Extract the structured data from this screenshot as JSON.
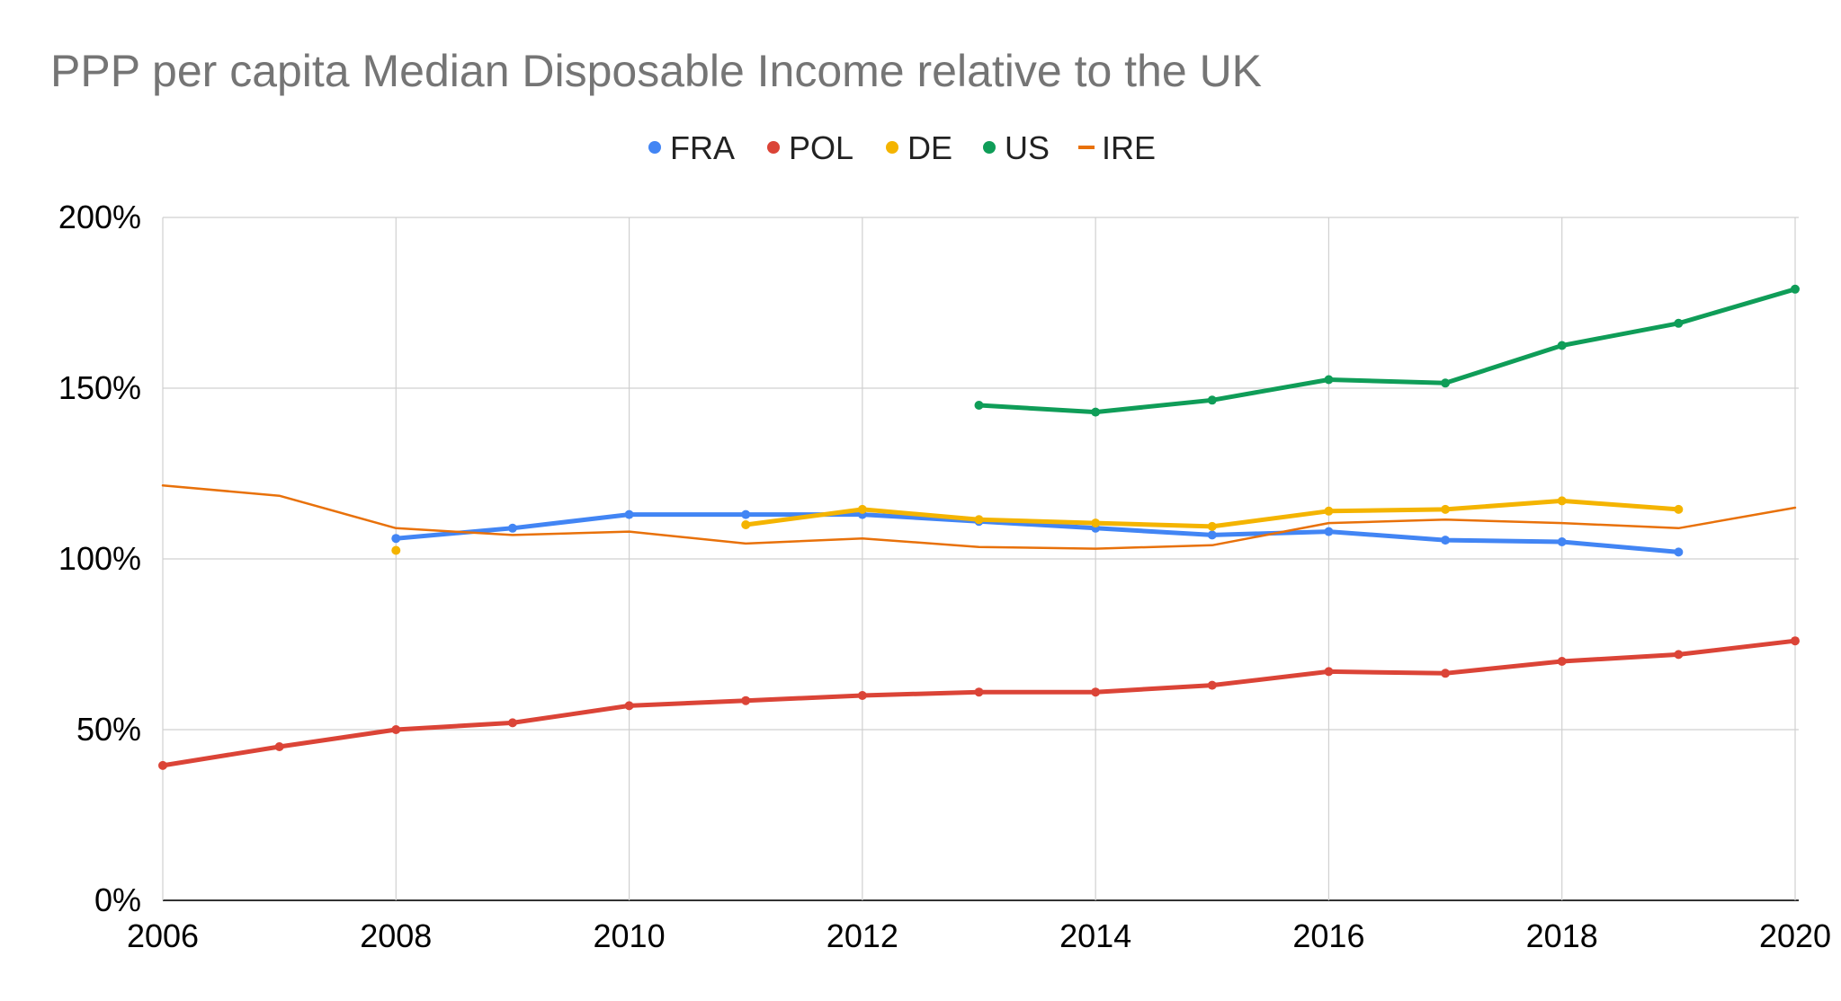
{
  "chart_data": {
    "type": "line",
    "title": "PPP per capita Median Disposable Income relative to the UK",
    "xlabel": "",
    "ylabel": "",
    "x_ticks": [
      "2006",
      "2008",
      "2010",
      "2012",
      "2014",
      "2016",
      "2018",
      "2020"
    ],
    "y_ticks": [
      "0%",
      "50%",
      "100%",
      "150%",
      "200%"
    ],
    "xlim": [
      2006,
      2020
    ],
    "ylim": [
      0,
      200
    ],
    "y_unit": "%",
    "grid": true,
    "legend_position": "top-center",
    "series": [
      {
        "name": "FRA",
        "color": "#4285F4",
        "width": 5,
        "x": [
          2008,
          2009,
          2010,
          2011,
          2012,
          2013,
          2014,
          2015,
          2016,
          2017,
          2018,
          2019
        ],
        "values": [
          106,
          109,
          113,
          113,
          113,
          111,
          109,
          107,
          108,
          105.5,
          105,
          102
        ]
      },
      {
        "name": "POL",
        "color": "#DB4437",
        "width": 5,
        "x": [
          2006,
          2007,
          2008,
          2009,
          2010,
          2011,
          2012,
          2013,
          2014,
          2015,
          2016,
          2017,
          2018,
          2019,
          2020
        ],
        "values": [
          39.5,
          45,
          50,
          52,
          57,
          58.5,
          60,
          61,
          61,
          63,
          67,
          66.5,
          70,
          72,
          76
        ]
      },
      {
        "name": "DE",
        "color": "#F4B400",
        "width": 5,
        "segments": [
          {
            "x": [
              2008
            ],
            "values": [
              102.5
            ]
          },
          {
            "x": [
              2011,
              2012,
              2013,
              2014,
              2015,
              2016,
              2017,
              2018,
              2019
            ],
            "values": [
              110,
              114.5,
              111.5,
              110.5,
              109.5,
              114,
              114.5,
              117,
              114.5
            ]
          }
        ]
      },
      {
        "name": "US",
        "color": "#0F9D58",
        "width": 5,
        "x": [
          2013,
          2014,
          2015,
          2016,
          2017,
          2018,
          2019,
          2020
        ],
        "values": [
          145,
          143,
          146.5,
          152.5,
          151.5,
          162.5,
          169,
          179
        ]
      },
      {
        "name": "IRE",
        "color": "#E8710A",
        "width": 2.5,
        "x": [
          2006,
          2007,
          2008,
          2009,
          2010,
          2011,
          2012,
          2013,
          2014,
          2015,
          2016,
          2017,
          2018,
          2019,
          2020
        ],
        "values": [
          121.5,
          118.5,
          109,
          107,
          108,
          104.5,
          106,
          103.5,
          103,
          104,
          110.5,
          111.5,
          110.5,
          109,
          115
        ],
        "markers": false
      }
    ]
  }
}
